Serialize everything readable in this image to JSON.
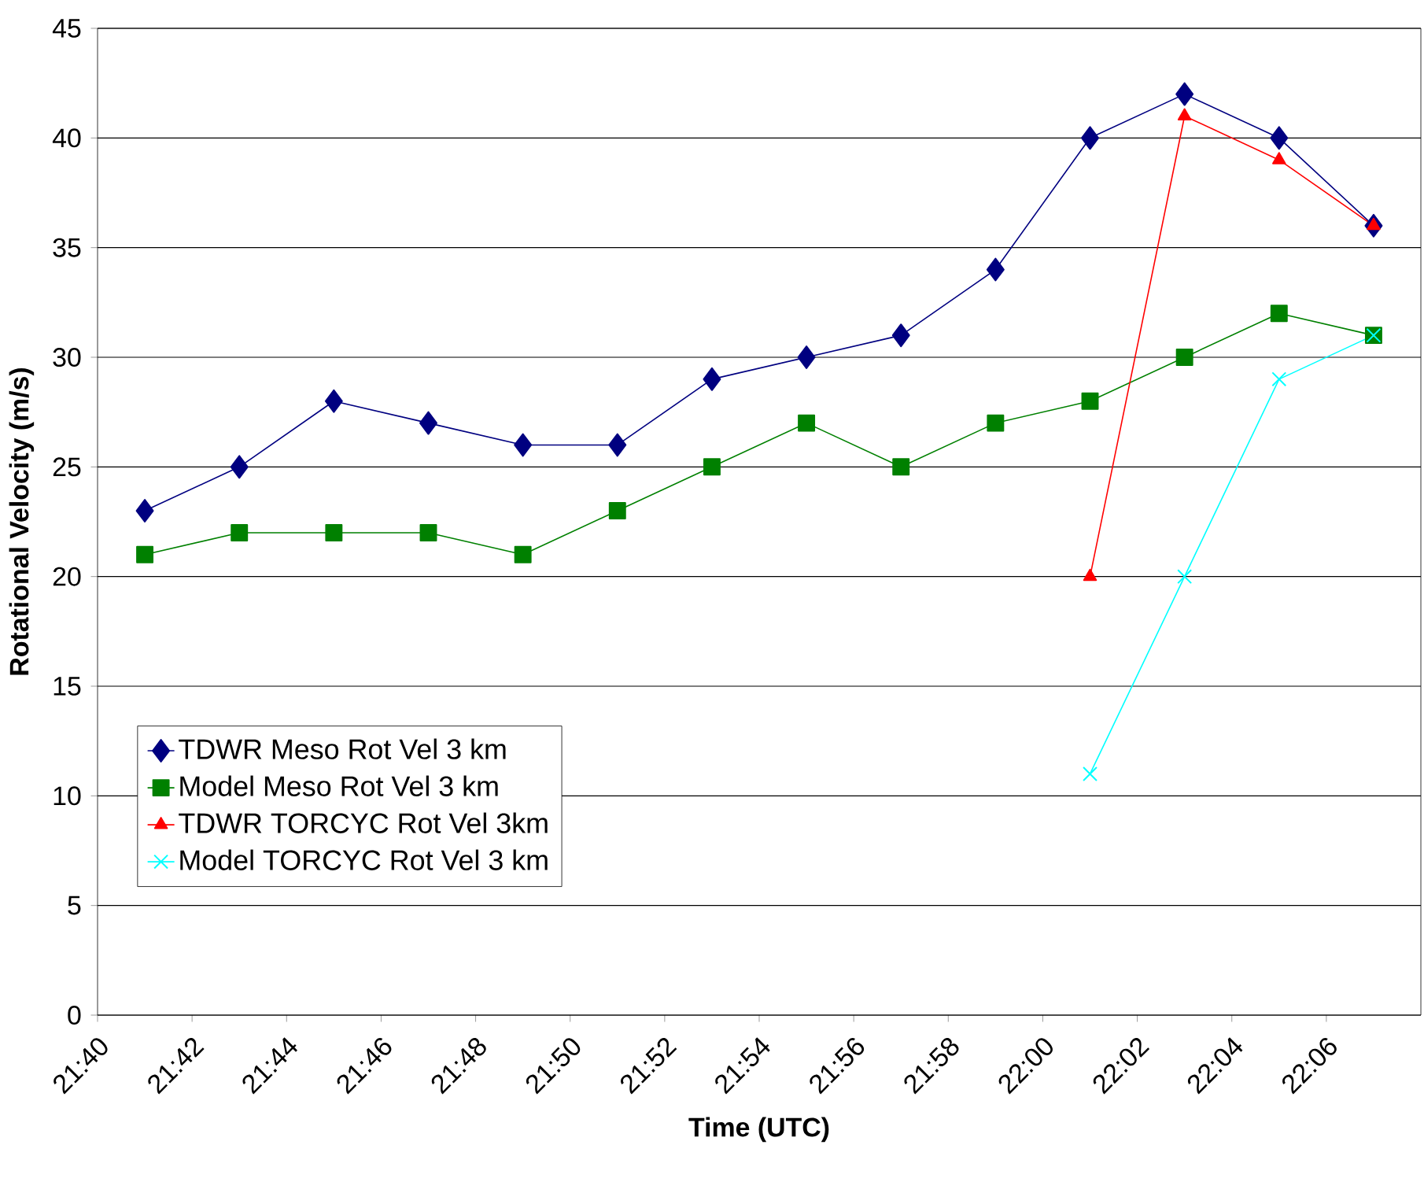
{
  "chart_data": {
    "type": "line",
    "xlabel": "Time (UTC)",
    "ylabel": "Rotational Velocity (m/s)",
    "x": [
      21.683333,
      21.716667,
      21.75,
      21.783333,
      21.816667,
      21.85,
      21.883333,
      21.916667,
      21.95,
      21.983333,
      22.016667,
      22.05,
      22.083333,
      22.116667
    ],
    "xlim": [
      21.666667,
      22.133333
    ],
    "xticks": [
      {
        "value": 21.666667,
        "label": "21:40"
      },
      {
        "value": 21.7,
        "label": "21:42"
      },
      {
        "value": 21.733333,
        "label": "21:44"
      },
      {
        "value": 21.766667,
        "label": "21:46"
      },
      {
        "value": 21.8,
        "label": "21:48"
      },
      {
        "value": 21.833333,
        "label": "21:50"
      },
      {
        "value": 21.866667,
        "label": "21:52"
      },
      {
        "value": 21.9,
        "label": "21:54"
      },
      {
        "value": 21.933333,
        "label": "21:56"
      },
      {
        "value": 21.966667,
        "label": "21:58"
      },
      {
        "value": 22.0,
        "label": "22:00"
      },
      {
        "value": 22.033333,
        "label": "22:02"
      },
      {
        "value": 22.066667,
        "label": "22:04"
      },
      {
        "value": 22.1,
        "label": "22:06"
      }
    ],
    "ylim": [
      0,
      45
    ],
    "yticks": [
      0,
      5,
      10,
      15,
      20,
      25,
      30,
      35,
      40,
      45
    ],
    "grid": "y",
    "legend": "left",
    "line_style": "solid",
    "series": [
      {
        "name": "TDWR Meso Rot Vel 3 km",
        "color": "#000080",
        "marker": "diamond",
        "values": [
          23,
          25,
          28,
          27,
          26,
          26,
          29,
          30,
          31,
          34,
          40,
          42,
          40,
          36
        ]
      },
      {
        "name": "Model Meso Rot Vel 3 km",
        "color": "#008000",
        "marker": "square",
        "values": [
          21,
          22,
          22,
          22,
          21,
          23,
          25,
          27,
          25,
          27,
          28,
          30,
          32,
          31
        ]
      },
      {
        "name": "TDWR TORCYC Rot Vel 3km",
        "color": "#ff0000",
        "marker": "triangle",
        "values": [
          null,
          null,
          null,
          null,
          null,
          null,
          null,
          null,
          null,
          null,
          20,
          41,
          39,
          36
        ]
      },
      {
        "name": "Model TORCYC Rot Vel 3 km",
        "color": "#00ffff",
        "marker": "cross",
        "values": [
          null,
          null,
          null,
          null,
          null,
          null,
          null,
          null,
          null,
          null,
          11,
          20,
          29,
          31
        ]
      }
    ]
  }
}
